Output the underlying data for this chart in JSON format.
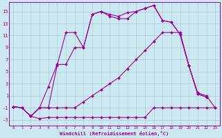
{
  "xlabel": "Windchill (Refroidissement éolien,°C)",
  "bg_color": "#cce8f0",
  "grid_color": "#aaccdd",
  "line_color": "#990099",
  "xlim": [
    -0.5,
    23.5
  ],
  "ylim": [
    -4,
    16.5
  ],
  "xticks": [
    0,
    1,
    2,
    3,
    4,
    5,
    6,
    7,
    8,
    9,
    10,
    11,
    12,
    13,
    14,
    15,
    16,
    17,
    18,
    19,
    20,
    21,
    22,
    23
  ],
  "yticks": [
    -3,
    -1,
    1,
    3,
    5,
    7,
    9,
    11,
    13,
    15
  ],
  "line1_x": [
    0,
    1,
    2,
    3,
    4,
    5,
    6,
    7,
    8,
    9,
    10,
    11,
    12,
    13,
    14,
    15,
    16,
    17,
    18,
    19,
    20,
    21,
    22,
    23
  ],
  "line1_y": [
    -0.8,
    -1.0,
    -2.4,
    -2.8,
    -2.6,
    -2.6,
    -2.6,
    -2.6,
    -2.6,
    -2.6,
    -2.6,
    -2.6,
    -2.6,
    -2.6,
    -2.6,
    -2.6,
    -1.0,
    -1.0,
    -1.0,
    -1.0,
    -1.0,
    -1.0,
    -1.0,
    -1.0
  ],
  "line2_x": [
    0,
    1,
    2,
    3,
    4,
    5,
    6,
    7,
    8,
    9,
    10,
    11,
    12,
    13,
    14,
    15,
    16,
    17,
    18,
    19,
    20,
    21,
    22,
    23
  ],
  "line2_y": [
    -0.8,
    -1.0,
    -2.4,
    -1.0,
    -1.0,
    -1.0,
    -1.0,
    -1.0,
    0.0,
    1.0,
    2.0,
    3.0,
    4.0,
    5.5,
    7.0,
    8.5,
    10.0,
    11.5,
    11.5,
    11.5,
    6.0,
    1.5,
    1.0,
    -1.0
  ],
  "line3_x": [
    0,
    1,
    2,
    3,
    4,
    5,
    6,
    7,
    8,
    9,
    10,
    11,
    12,
    13,
    14,
    15,
    16,
    17,
    18,
    19,
    20,
    21,
    22
  ],
  "line3_y": [
    -0.8,
    -1.0,
    -2.4,
    -1.0,
    2.5,
    6.2,
    6.2,
    9.0,
    9.0,
    14.5,
    15.0,
    14.2,
    13.8,
    13.8,
    15.0,
    15.5,
    16.0,
    13.5,
    13.2,
    11.2,
    6.0,
    1.3,
    0.8
  ],
  "line4_x": [
    0,
    1,
    2,
    3,
    4,
    5,
    6,
    7,
    8,
    9,
    10,
    11,
    12,
    13,
    14,
    15,
    16,
    17,
    18,
    19,
    20,
    21,
    22
  ],
  "line4_y": [
    -0.8,
    -1.0,
    -2.4,
    -1.0,
    -1.0,
    6.0,
    11.5,
    11.5,
    9.0,
    14.5,
    15.0,
    14.5,
    14.2,
    14.8,
    15.0,
    15.5,
    16.0,
    13.5,
    13.2,
    11.2,
    6.0,
    1.3,
    0.8
  ]
}
